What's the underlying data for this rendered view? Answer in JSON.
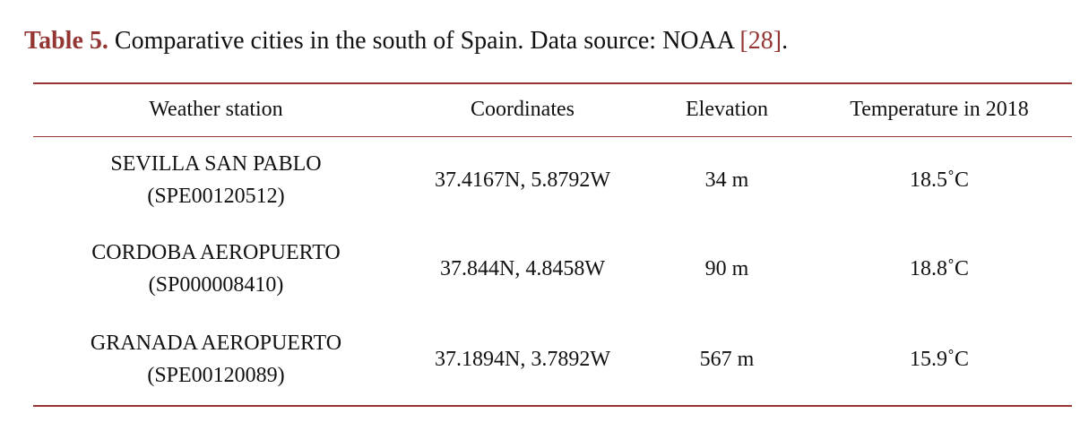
{
  "caption": {
    "label": "Table 5.",
    "text": " Comparative cities in the south of Spain. Data source: NOAA ",
    "reference": "[28]",
    "end": "."
  },
  "colors": {
    "accent": "#943634",
    "text": "#111111"
  },
  "table": {
    "headers": [
      "Weather station",
      "Coordinates",
      "Elevation",
      "Temperature in 2018"
    ],
    "rows": [
      {
        "station": "SEVILLA SAN PABLO",
        "station_id": "(SPE00120512)",
        "coordinates": "37.4167N, 5.8792W",
        "elevation": "34 m",
        "temperature": "18.5˚C"
      },
      {
        "station": "CORDOBA AEROPUERTO",
        "station_id": "(SP000008410)",
        "coordinates": "37.844N, 4.8458W",
        "elevation": "90 m",
        "temperature": "18.8˚C"
      },
      {
        "station": "GRANADA AEROPUERTO",
        "station_id": "(SPE00120089)",
        "coordinates": "37.1894N, 3.7892W",
        "elevation": "567 m",
        "temperature": "15.9˚C"
      }
    ]
  }
}
